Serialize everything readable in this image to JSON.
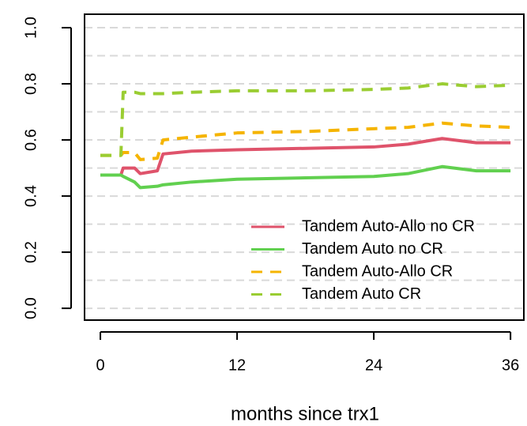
{
  "chart_data": {
    "type": "line",
    "xlabel": "months since trx1",
    "x": [
      0,
      1.8,
      2,
      3,
      3.5,
      5,
      5.5,
      8,
      12,
      18,
      24,
      27,
      30,
      33,
      36
    ],
    "series": [
      {
        "name": "Tandem Auto-Allo no CR",
        "color": "#df536b",
        "linestyle": "solid",
        "values": [
          0.475,
          0.475,
          0.5,
          0.5,
          0.48,
          0.49,
          0.55,
          0.56,
          0.565,
          0.57,
          0.575,
          0.585,
          0.605,
          0.59,
          0.59
        ]
      },
      {
        "name": "Tandem Auto no CR",
        "color": "#61d04f",
        "linestyle": "solid",
        "values": [
          0.475,
          0.475,
          0.47,
          0.45,
          0.43,
          0.435,
          0.44,
          0.45,
          0.46,
          0.465,
          0.47,
          0.48,
          0.505,
          0.49,
          0.49
        ]
      },
      {
        "name": "Tandem Auto-Allo CR",
        "color": "#f5b400",
        "linestyle": "dashed",
        "values": [
          0.545,
          0.545,
          0.555,
          0.555,
          0.53,
          0.535,
          0.6,
          0.61,
          0.625,
          0.63,
          0.64,
          0.645,
          0.66,
          0.65,
          0.645
        ]
      },
      {
        "name": "Tandem Auto CR",
        "color": "#9acd32",
        "linestyle": "dashed",
        "values": [
          0.545,
          0.545,
          0.77,
          0.77,
          0.765,
          0.765,
          0.765,
          0.77,
          0.775,
          0.775,
          0.78,
          0.785,
          0.8,
          0.79,
          0.795
        ]
      }
    ],
    "xlim": [
      -1.39,
      37.17
    ],
    "xticks": [
      0,
      12,
      24,
      36
    ],
    "ylim": [
      -0.042,
      1.048
    ],
    "yticks": [
      {
        "value": 0,
        "label": "0.0"
      },
      0.2,
      0.4,
      0.6,
      0.8,
      {
        "value": 1,
        "label": "1.0"
      }
    ],
    "ygrid": [
      0,
      0.1,
      0.2,
      0.3,
      0.4,
      0.5,
      0.6,
      0.7,
      0.8,
      0.9,
      1
    ],
    "legend": "bottom-right"
  }
}
